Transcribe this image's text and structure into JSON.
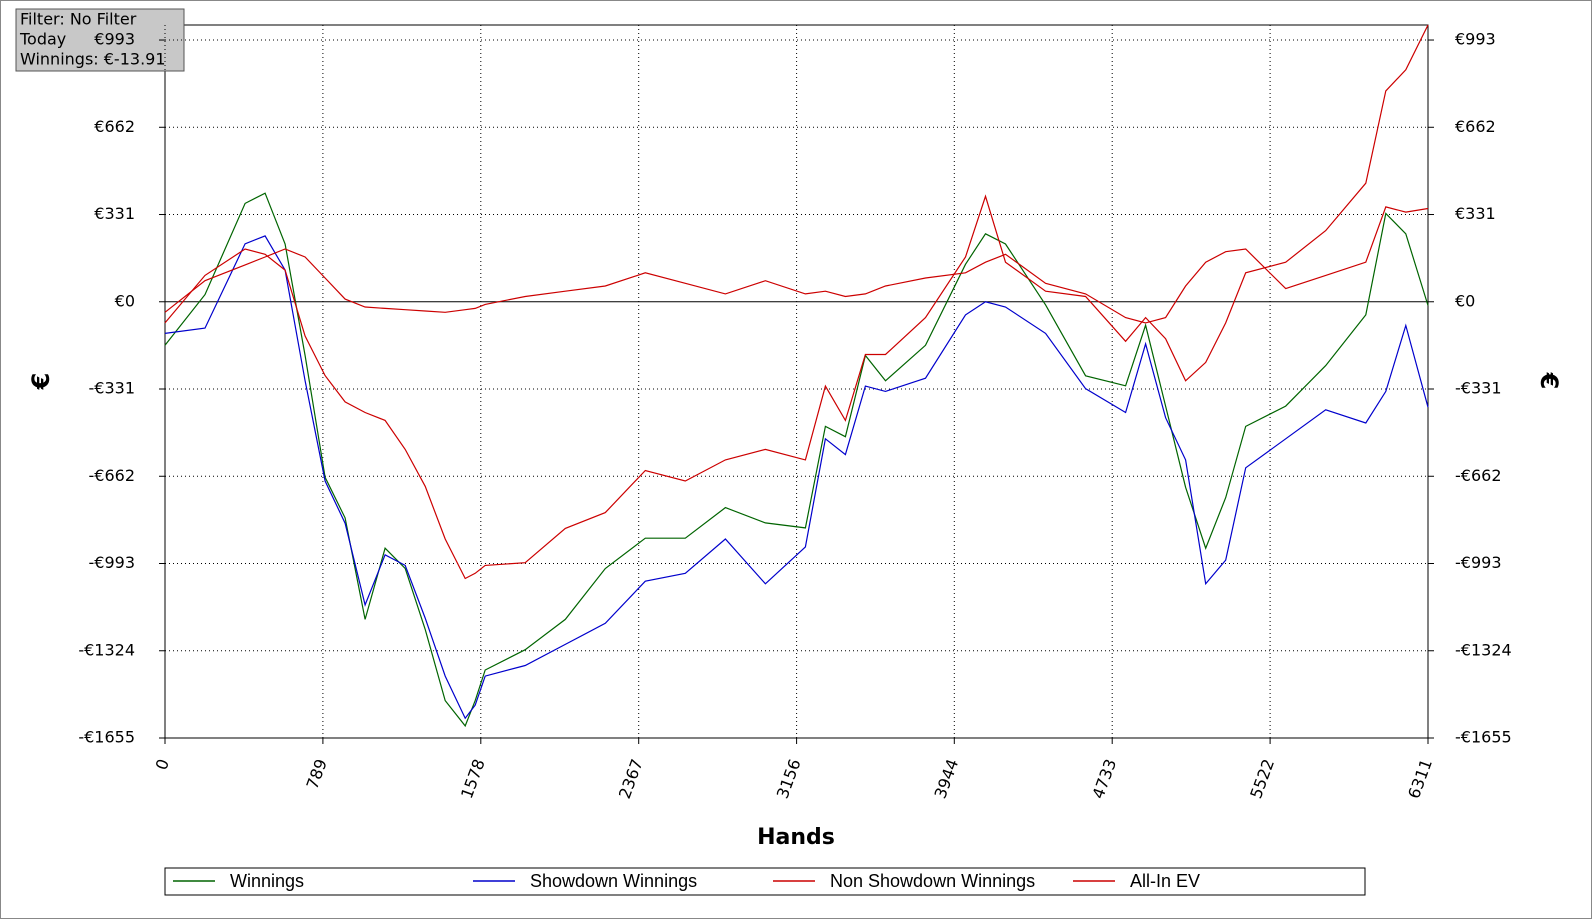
{
  "chart_data": {
    "type": "line",
    "annotations": [
      "Filter: No Filter",
      "Today",
      "Winnings: €-13.91"
    ],
    "x_label": "Hands",
    "y_label": "€",
    "y2_label": "€",
    "xlim": [
      0,
      6311
    ],
    "xticks": [
      0,
      789,
      1578,
      2367,
      3156,
      3944,
      4733,
      5522,
      6311
    ],
    "ylim": [
      -1655,
      1050
    ],
    "yticks": [
      {
        "value": -1655,
        "label": "-€1655"
      },
      {
        "value": -1324,
        "label": "-€1324"
      },
      {
        "value": -993,
        "label": "-€993"
      },
      {
        "value": -662,
        "label": "-€662"
      },
      {
        "value": -331,
        "label": "-€331"
      },
      {
        "value": 0,
        "label": "€0"
      },
      {
        "value": 331,
        "label": "€331"
      },
      {
        "value": 662,
        "label": "€662"
      },
      {
        "value": 993,
        "label": "€993"
      }
    ],
    "y2lim": [
      -1655,
      1050
    ],
    "y2ticks": [
      {
        "value": -1655,
        "label": "-€1655"
      },
      {
        "value": -1324,
        "label": "-€1324"
      },
      {
        "value": -993,
        "label": "-€993"
      },
      {
        "value": -662,
        "label": "-€662"
      },
      {
        "value": -331,
        "label": "-€331"
      },
      {
        "value": 0,
        "label": "€0"
      },
      {
        "value": 331,
        "label": "€331"
      },
      {
        "value": 662,
        "label": "€662"
      },
      {
        "value": 993,
        "label": "€993"
      }
    ],
    "grid": true,
    "legend": "bottom",
    "x": [
      0,
      200,
      400,
      500,
      600,
      700,
      800,
      900,
      1000,
      1100,
      1200,
      1300,
      1400,
      1500,
      1550,
      1600,
      1800,
      2000,
      2200,
      2400,
      2600,
      2800,
      3000,
      3200,
      3300,
      3400,
      3500,
      3600,
      3800,
      4000,
      4100,
      4200,
      4400,
      4600,
      4800,
      4900,
      5000,
      5100,
      5200,
      5300,
      5400,
      5600,
      5800,
      6000,
      6100,
      6200,
      6311
    ],
    "series": [
      {
        "name": "Winnings",
        "color": "#006400",
        "values": [
          -165,
          27,
          373,
          412,
          219,
          -204,
          -666,
          -820,
          -1205,
          -935,
          -1012,
          -1243,
          -1513,
          -1609,
          -1513,
          -1397,
          -1320,
          -1205,
          -1012,
          -897,
          -897,
          -781,
          -839,
          -858,
          -473,
          -512,
          -204,
          -300,
          -165,
          142,
          258,
          219,
          -12,
          -281,
          -319,
          -89,
          -396,
          -704,
          -935,
          -743,
          -473,
          -396,
          -242,
          -50,
          335,
          258,
          -14
        ]
      },
      {
        "name": "Showdown Winnings",
        "color": "#0000cc",
        "values": [
          -120,
          -100,
          220,
          250,
          120,
          -300,
          -680,
          -840,
          -1150,
          -960,
          -1000,
          -1200,
          -1420,
          -1580,
          -1530,
          -1420,
          -1380,
          -1300,
          -1220,
          -1060,
          -1030,
          -900,
          -1070,
          -930,
          -520,
          -580,
          -320,
          -340,
          -290,
          -50,
          0,
          -20,
          -120,
          -330,
          -420,
          -160,
          -440,
          -600,
          -1070,
          -980,
          -630,
          -520,
          -410,
          -460,
          -340,
          -90,
          -400
        ]
      },
      {
        "name": "Non Showdown Winnings",
        "color": "#cc0000",
        "values": [
          -40,
          80,
          140,
          170,
          200,
          170,
          90,
          10,
          -20,
          -25,
          -30,
          -35,
          -40,
          -30,
          -25,
          -10,
          20,
          40,
          60,
          110,
          70,
          30,
          80,
          30,
          40,
          20,
          30,
          60,
          90,
          110,
          150,
          180,
          70,
          30,
          -60,
          -80,
          -60,
          60,
          150,
          190,
          200,
          50,
          100,
          150,
          360,
          340,
          354
        ]
      },
      {
        "name": "All-In EV",
        "color": "#cc0000",
        "values": [
          -80,
          100,
          200,
          180,
          120,
          -130,
          -280,
          -380,
          -420,
          -450,
          -560,
          -700,
          -900,
          -1050,
          -1030,
          -1000,
          -990,
          -860,
          -800,
          -640,
          -680,
          -600,
          -560,
          -600,
          -320,
          -450,
          -200,
          -200,
          -60,
          170,
          400,
          150,
          40,
          20,
          -150,
          -60,
          -140,
          -300,
          -230,
          -80,
          110,
          150,
          270,
          450,
          800,
          880,
          1050
        ]
      }
    ]
  }
}
